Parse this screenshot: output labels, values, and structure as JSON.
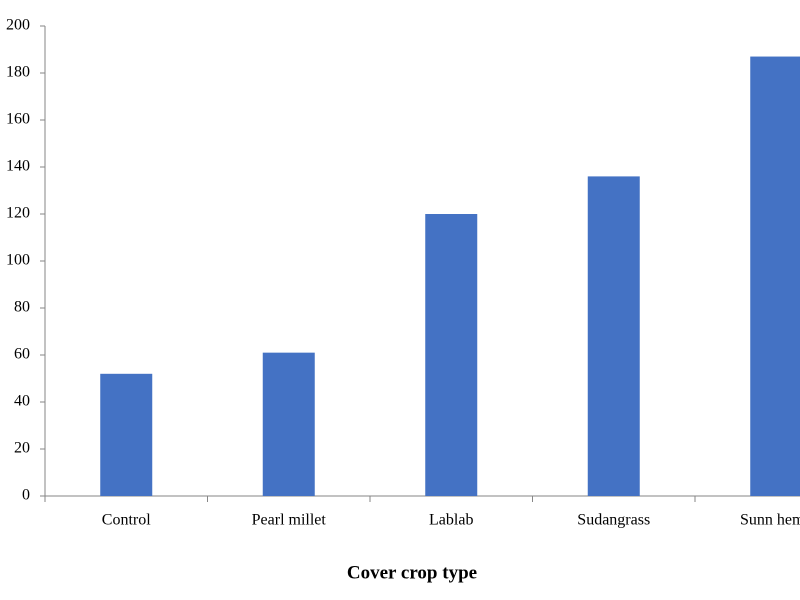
{
  "chart_data": {
    "type": "bar",
    "x_label": "Cover crop type",
    "categories": [
      "Control",
      "Pearl millet",
      "Lablab",
      "Sudangrass",
      "Sunn hemp"
    ],
    "values": [
      52,
      61,
      120,
      136,
      187
    ],
    "color": "#4472c4",
    "ylim": [
      0,
      200
    ],
    "yticks": [
      0,
      20,
      40,
      60,
      80,
      100,
      120,
      140,
      160,
      180,
      200
    ],
    "grid": false
  }
}
